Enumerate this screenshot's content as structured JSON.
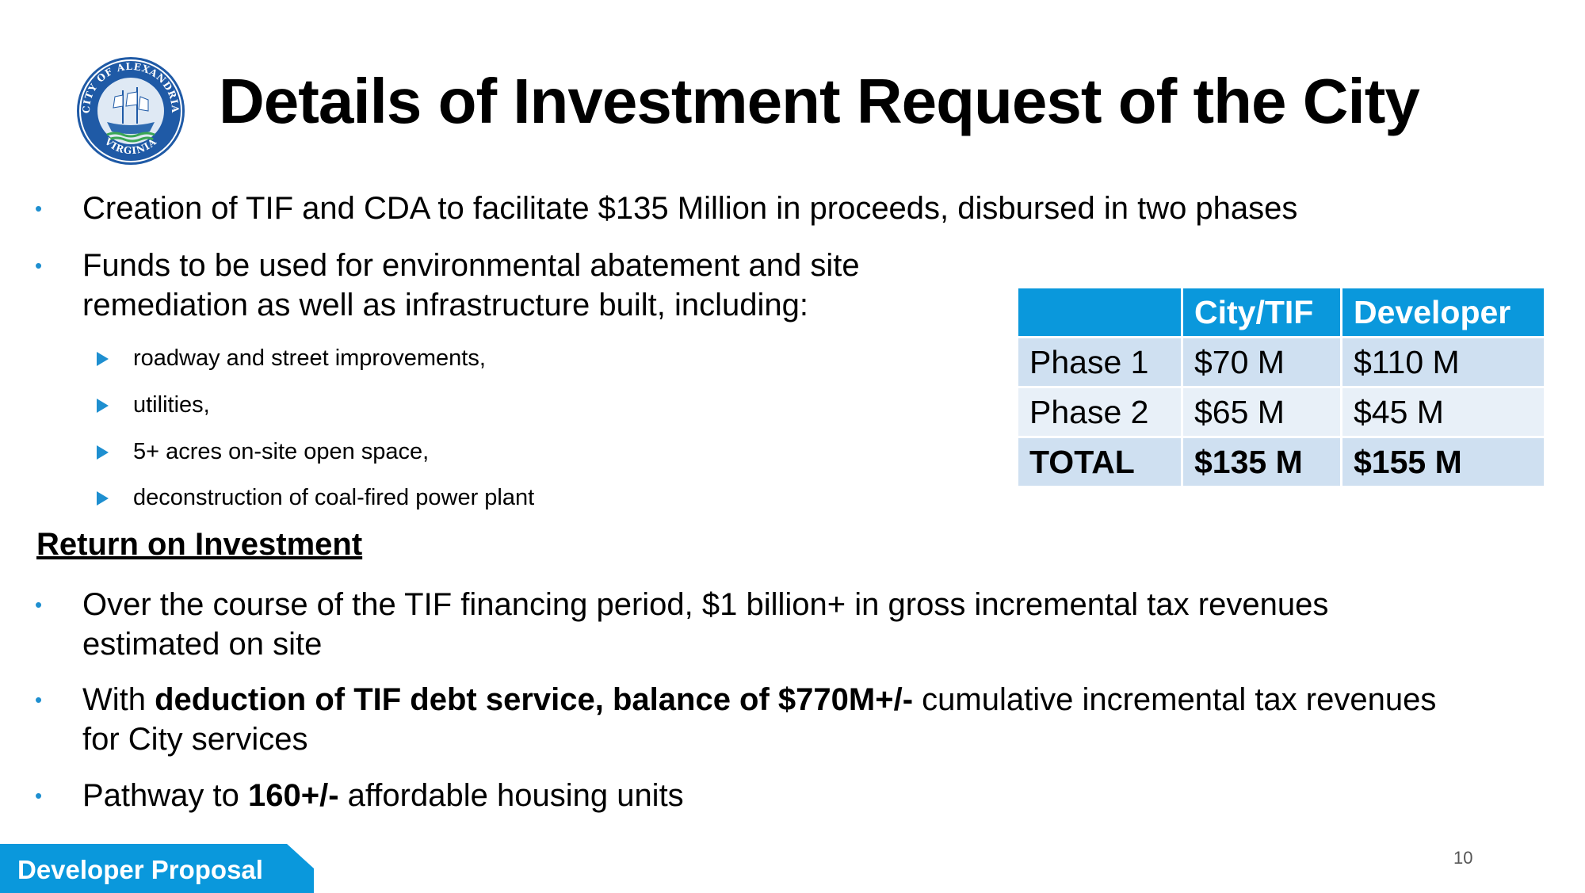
{
  "title": "Details of Investment Request of the City",
  "seal": {
    "text_top": "CITY OF ALEXANDRIA",
    "text_bottom": "VIRGINIA"
  },
  "bullets": [
    {
      "text": "Creation of TIF and CDA to facilitate $135 Million in proceeds, disbursed in two phases"
    },
    {
      "line1": "Funds to be used for environmental abatement and site",
      "line2": "remediation as well as infrastructure built, including:"
    },
    {
      "line1": "Over the course of the TIF financing period, $1 billion+ in gross incremental tax revenues",
      "line2": "estimated on site"
    },
    {
      "pre": "With ",
      "bold": "deduction of TIF debt service, balance of $770M+/-",
      "post": " cumulative incremental tax revenues",
      "line2": "for City services"
    },
    {
      "pre": "Pathway to ",
      "bold": "160+/-",
      "post": " affordable housing units"
    }
  ],
  "sub_items": [
    "roadway and street improvements,",
    "utilities,",
    "5+ acres on-site open space,",
    "deconstruction of coal-fired power plant"
  ],
  "roi_heading": "Return on Investment",
  "table": {
    "headers": [
      "",
      "City/TIF",
      "Developer"
    ],
    "rows": [
      [
        "Phase 1",
        "$70 M",
        "$110 M"
      ],
      [
        "Phase 2",
        "$65 M",
        "$45 M"
      ],
      [
        "TOTAL",
        "$135 M",
        "$155 M"
      ]
    ]
  },
  "footer_tag": "Developer Proposal",
  "page_number": "10",
  "colors": {
    "accent": "#0a98dc",
    "row_dark": "#cfe0f1",
    "row_light": "#e8f0f8",
    "seal_blue": "#1f5aa6"
  }
}
